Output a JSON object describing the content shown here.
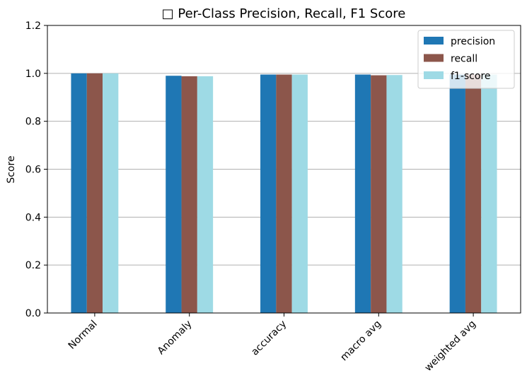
{
  "chart_data": {
    "type": "bar",
    "title": "□ Per-Class Precision, Recall, F1 Score",
    "xlabel": "",
    "ylabel": "Score",
    "ylim": [
      0,
      1.2
    ],
    "yticks": [
      "0.0",
      "0.2",
      "0.4",
      "0.6",
      "0.8",
      "1.0",
      "1.2"
    ],
    "categories": [
      "Normal",
      "Anomaly",
      "accuracy",
      "macro avg",
      "weighted avg"
    ],
    "series": [
      {
        "name": "precision",
        "color": "#1f77b4",
        "values": [
          1.0,
          0.99,
          0.995,
          0.995,
          0.995
        ]
      },
      {
        "name": "recall",
        "color": "#8c564b",
        "values": [
          1.0,
          0.988,
          0.995,
          0.992,
          0.995
        ]
      },
      {
        "name": "f1-score",
        "color": "#9edae5",
        "values": [
          1.0,
          0.988,
          0.995,
          0.993,
          0.995
        ]
      }
    ],
    "grid": "y",
    "legend_position": "top-right"
  }
}
